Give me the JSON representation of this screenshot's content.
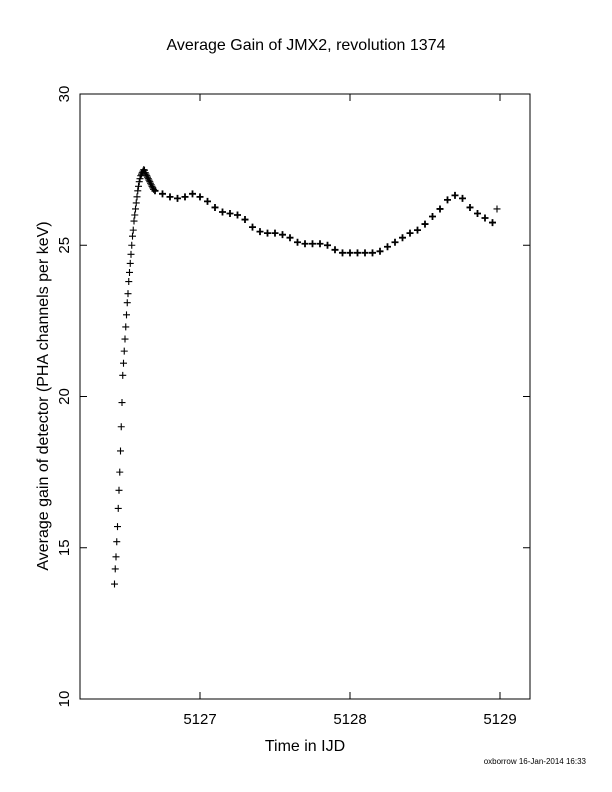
{
  "chart_data": {
    "type": "scatter",
    "title": "Average Gain of JMX2, revolution 1374",
    "xlabel": "Time in IJD",
    "ylabel": "Average gain of detector (PHA channels per keV)",
    "xlim": [
      5126.2,
      5129.2
    ],
    "ylim": [
      10,
      30
    ],
    "xticks": [
      5127,
      5128,
      5129
    ],
    "yticks": [
      10,
      15,
      20,
      25,
      30
    ],
    "grid": false,
    "marker": "+",
    "color": "#000000",
    "series": [
      {
        "x": [
          5126.43,
          5126.435,
          5126.44,
          5126.445,
          5126.45,
          5126.455,
          5126.46,
          5126.465,
          5126.47,
          5126.475,
          5126.48,
          5126.485,
          5126.49,
          5126.495,
          5126.5,
          5126.505,
          5126.51,
          5126.515,
          5126.52,
          5126.525,
          5126.53,
          5126.535,
          5126.54,
          5126.545,
          5126.55,
          5126.555,
          5126.56,
          5126.565,
          5126.57,
          5126.575,
          5126.58,
          5126.585,
          5126.59,
          5126.595,
          5126.6,
          5126.605,
          5126.61,
          5126.615,
          5126.62,
          5126.625,
          5126.63,
          5126.635,
          5126.64,
          5126.645,
          5126.65,
          5126.655,
          5126.66,
          5126.665,
          5126.67,
          5126.675,
          5126.68,
          5126.685,
          5126.69
        ],
        "y": [
          13.8,
          14.3,
          14.7,
          15.2,
          15.7,
          16.3,
          16.9,
          17.5,
          18.2,
          19.0,
          19.8,
          20.7,
          21.1,
          21.5,
          21.9,
          22.3,
          22.7,
          23.1,
          23.4,
          23.8,
          24.1,
          24.4,
          24.7,
          25.0,
          25.3,
          25.5,
          25.8,
          26.0,
          26.2,
          26.4,
          26.6,
          26.8,
          26.95,
          27.1,
          27.2,
          27.3,
          27.35,
          27.4,
          27.45,
          27.5,
          27.48,
          27.4,
          27.35,
          27.3,
          27.25,
          27.2,
          27.15,
          27.1,
          27.05,
          27.0,
          26.95,
          26.9,
          26.85
        ]
      },
      {
        "x": [
          5126.7,
          5126.75,
          5126.8,
          5126.85,
          5126.9,
          5126.95,
          5127.0,
          5127.05,
          5127.1,
          5127.15,
          5127.2,
          5127.25,
          5127.3,
          5127.35,
          5127.4,
          5127.45,
          5127.5,
          5127.55,
          5127.6,
          5127.65,
          5127.7,
          5127.75,
          5127.8,
          5127.85,
          5127.9,
          5127.95,
          5128.0,
          5128.05,
          5128.1,
          5128.15,
          5128.2,
          5128.25,
          5128.3,
          5128.35,
          5128.4,
          5128.45,
          5128.5,
          5128.55,
          5128.6,
          5128.65,
          5128.7,
          5128.75,
          5128.8,
          5128.85,
          5128.9,
          5128.95
        ],
        "y": [
          26.8,
          26.7,
          26.6,
          26.55,
          26.6,
          26.7,
          26.6,
          26.45,
          26.25,
          26.1,
          26.05,
          26.0,
          25.85,
          25.6,
          25.45,
          25.4,
          25.4,
          25.35,
          25.25,
          25.1,
          25.05,
          25.05,
          25.05,
          25.0,
          24.85,
          24.75,
          24.75,
          24.75,
          24.75,
          24.75,
          24.8,
          24.95,
          25.1,
          25.25,
          25.4,
          25.5,
          25.7,
          25.95,
          26.2,
          26.5,
          26.65,
          26.55,
          26.25,
          26.05,
          25.9,
          25.75
        ]
      },
      {
        "x": [
          5128.98
        ],
        "y": [
          26.2
        ]
      }
    ]
  },
  "footer": "oxborrow 16-Jan-2014 16:33"
}
